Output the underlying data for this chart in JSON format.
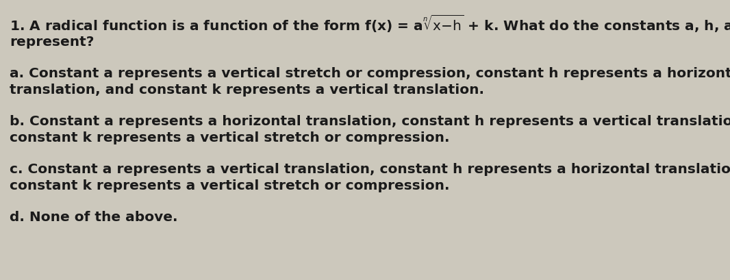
{
  "background_color": "#ccc8bc",
  "text_color": "#1a1a1a",
  "title_line1_plain": "1. A radical function is a function of the form f(x) = a",
  "title_line1_math": "\\sqrt[n]{\\mathregular{x-h}}",
  "title_line1_end": " + k. What do the constants a, h, and k",
  "title_line2": "represent?",
  "option_a_line1": "a. Constant a represents a vertical stretch or compression, constant h represents a horizontal",
  "option_a_line2": "translation, and constant k represents a vertical translation.",
  "option_b_line1": "b. Constant a represents a horizontal translation, constant h represents a vertical translation, and",
  "option_b_line2": "constant k represents a vertical stretch or compression.",
  "option_c_line1": "c. Constant a represents a vertical translation, constant h represents a horizontal translation, and",
  "option_c_line2": "constant k represents a vertical stretch or compression.",
  "option_d": "d. None of the above.",
  "font_size": 14.5,
  "font_weight": "bold"
}
